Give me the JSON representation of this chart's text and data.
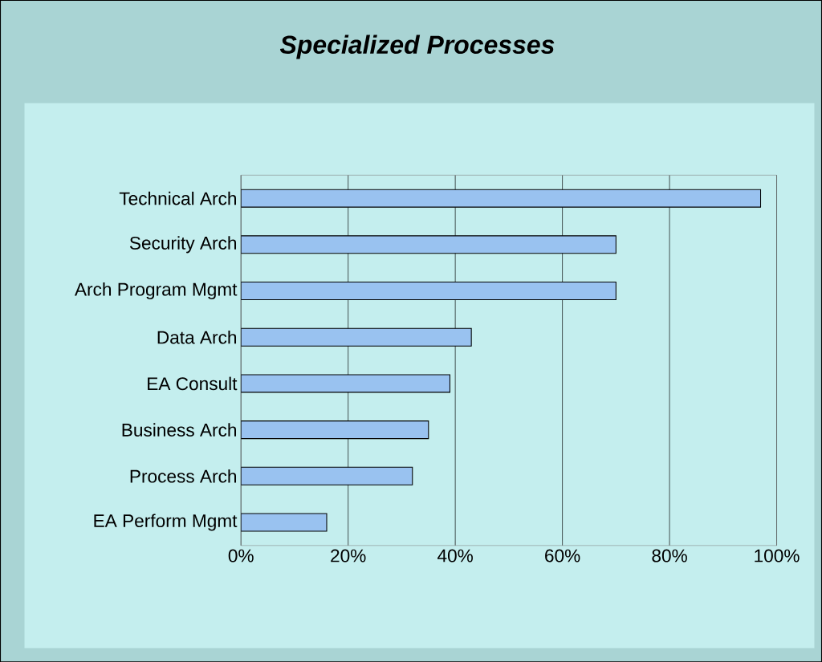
{
  "chart_data": {
    "type": "bar",
    "orientation": "horizontal",
    "title": "Specialized Processes",
    "categories": [
      "Technical Arch",
      "Security Arch",
      "Arch Program Mgmt",
      "Data Arch",
      "EA Consult",
      "Business Arch",
      "Process Arch",
      "EA Perform Mgmt"
    ],
    "values": [
      97,
      70,
      70,
      43,
      39,
      35,
      32,
      16
    ],
    "color": "#99c2f0",
    "xlim": [
      0,
      100
    ],
    "xticks": [
      {
        "value": 0,
        "label": "0%"
      },
      {
        "value": 20,
        "label": "20%"
      },
      {
        "value": 40,
        "label": "40%"
      },
      {
        "value": 60,
        "label": "60%"
      },
      {
        "value": 80,
        "label": "80%"
      },
      {
        "value": 100,
        "label": "100%"
      }
    ],
    "grid": "x"
  }
}
